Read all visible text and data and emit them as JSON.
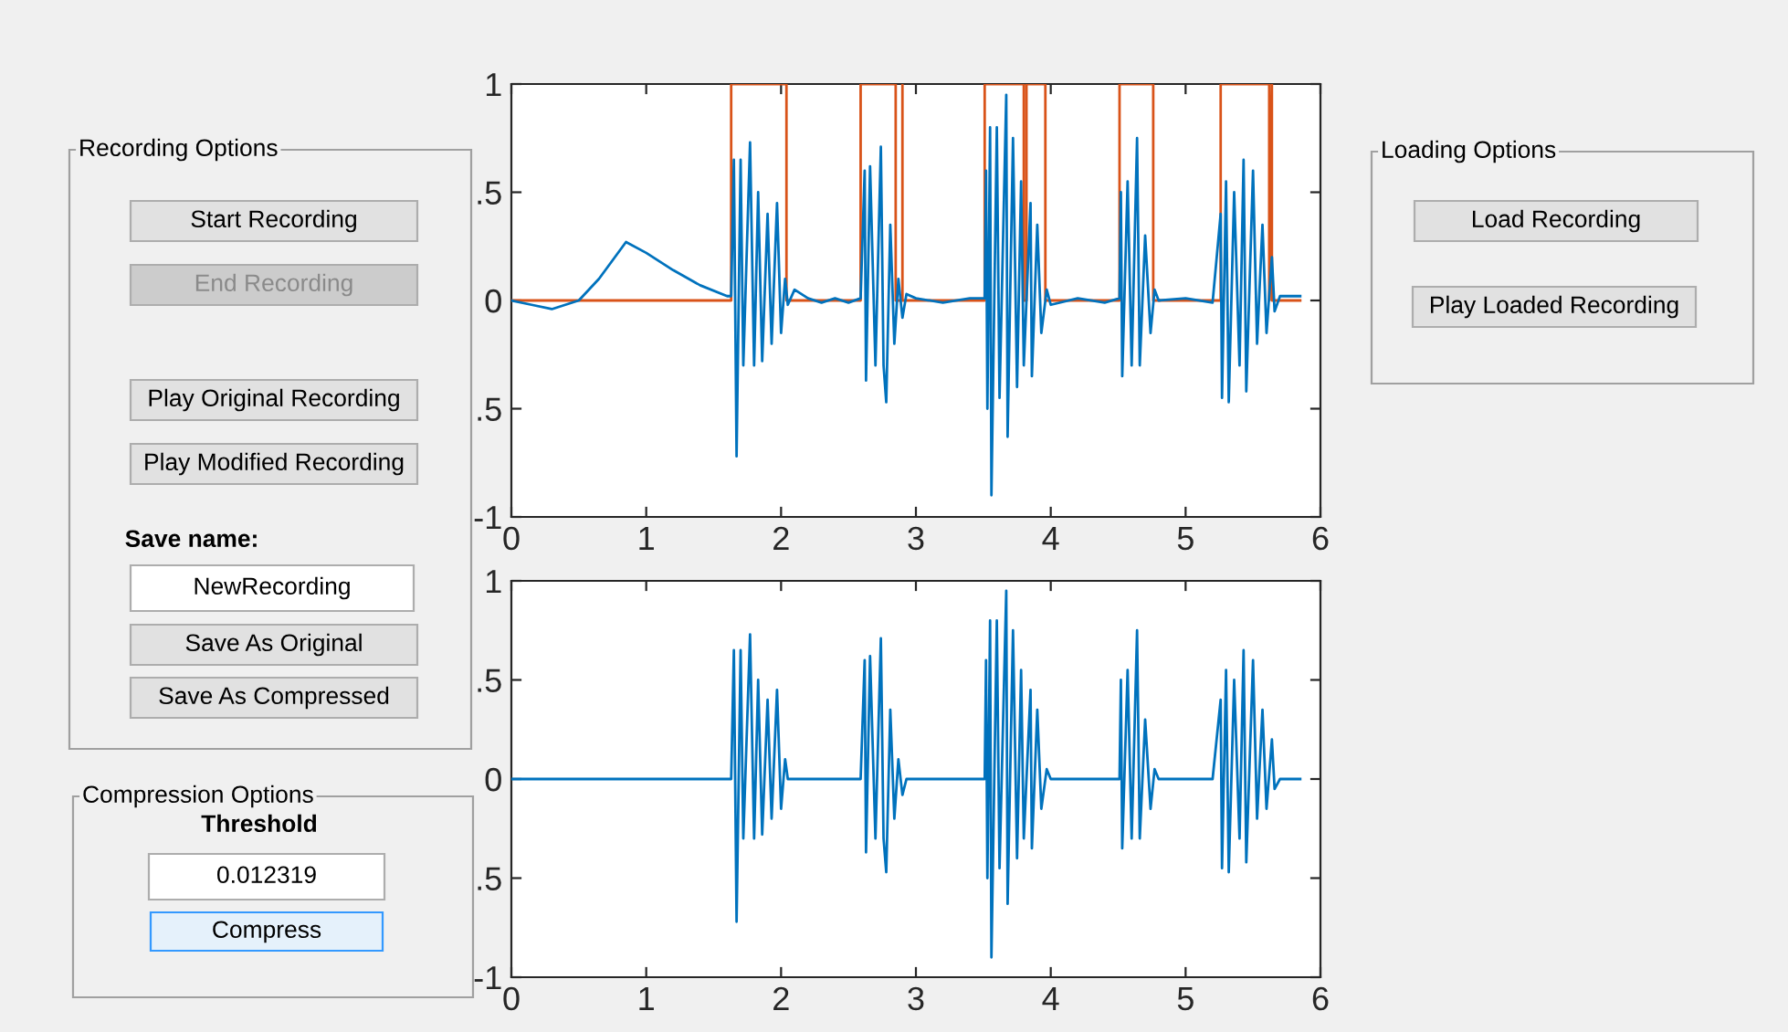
{
  "chart_data": [
    {
      "type": "other",
      "title": "Recording Options",
      "annotations": [
        "Start Recording",
        "End Recording",
        "Play Original Recording",
        "Play Modified Recording"
      ],
      "colors": [
        "#e1e1e1",
        "#cccccc",
        "#e1e1e1",
        "#e1e1e1"
      ]
    },
    {
      "type": "line",
      "xlim": [
        0,
        6
      ],
      "ylim": [
        -1,
        1
      ],
      "xticks": [
        0,
        1,
        2,
        3,
        4,
        5,
        6
      ],
      "yticks": [
        {
          "value": -1,
          "label": "-1"
        },
        {
          "value": -0.5,
          "label": ".5"
        },
        0,
        {
          "value": 0.5,
          "label": ".5"
        },
        1
      ],
      "series": [
        {
          "color": "#0072bd",
          "x": [
            0,
            0.15,
            0.3,
            0.5,
            0.65,
            0.85,
            1.0,
            1.2,
            1.4,
            1.6,
            1.63,
            1.65,
            1.67,
            1.7,
            1.72,
            1.77,
            1.8,
            1.83,
            1.86,
            1.9,
            1.93,
            1.97,
            2.0,
            2.03,
            2.05,
            2.1,
            2.2,
            2.3,
            2.4,
            2.5,
            2.59,
            2.62,
            2.63,
            2.66,
            2.7,
            2.74,
            2.76,
            2.78,
            2.81,
            2.84,
            2.87,
            2.9,
            2.93,
            3.0,
            3.2,
            3.4,
            3.51,
            3.52,
            3.53,
            3.55,
            3.56,
            3.6,
            3.62,
            3.67,
            3.68,
            3.72,
            3.75,
            3.78,
            3.8,
            3.85,
            3.86,
            3.9,
            3.93,
            3.97,
            4.0,
            4.2,
            4.4,
            4.51,
            4.52,
            4.53,
            4.57,
            4.6,
            4.64,
            4.66,
            4.7,
            4.74,
            4.77,
            4.8,
            5.0,
            5.2,
            5.26,
            5.27,
            5.3,
            5.32,
            5.36,
            5.4,
            5.43,
            5.45,
            5.5,
            5.53,
            5.57,
            5.6,
            5.64,
            5.66,
            5.7,
            5.85
          ],
          "values": [
            0,
            -0.02,
            -0.04,
            0,
            0.1,
            0.27,
            0.22,
            0.14,
            0.07,
            0.02,
            0.02,
            0.65,
            -0.72,
            0.65,
            -0.3,
            0.73,
            -0.3,
            0.5,
            -0.28,
            0.4,
            -0.2,
            0.45,
            -0.15,
            0.1,
            -0.02,
            0.05,
            0.01,
            -0.01,
            0.01,
            -0.01,
            0.01,
            0.6,
            -0.37,
            0.62,
            -0.3,
            0.71,
            -0.3,
            -0.47,
            0.35,
            -0.2,
            0.1,
            -0.08,
            0.03,
            0.01,
            -0.01,
            0.01,
            0.01,
            0.6,
            -0.5,
            0.8,
            -0.9,
            0.8,
            -0.45,
            0.95,
            -0.63,
            0.75,
            -0.4,
            0.55,
            -0.3,
            0.45,
            -0.35,
            0.35,
            -0.15,
            0.05,
            -0.02,
            0.01,
            -0.01,
            0.01,
            0.5,
            -0.35,
            0.55,
            -0.3,
            0.75,
            -0.3,
            0.3,
            -0.15,
            0.05,
            0,
            0.01,
            -0.01,
            0.4,
            -0.45,
            0.55,
            -0.47,
            0.5,
            -0.3,
            0.65,
            -0.42,
            0.6,
            -0.2,
            0.35,
            -0.15,
            0.2,
            -0.05,
            0.02,
            0.02
          ]
        },
        {
          "color": "#d95319",
          "x": [
            0,
            1.63,
            1.63,
            2.04,
            2.04,
            2.59,
            2.59,
            2.85,
            2.85,
            2.9,
            2.9,
            2.9,
            3.51,
            3.51,
            3.8,
            3.8,
            3.82,
            3.82,
            3.96,
            3.96,
            4.51,
            4.51,
            4.76,
            4.76,
            5.26,
            5.26,
            5.62,
            5.62,
            5.64,
            5.64,
            5.85
          ],
          "values": [
            0,
            0,
            1,
            1,
            0,
            0,
            1,
            1,
            0,
            0,
            1,
            0,
            0,
            1,
            1,
            0,
            0,
            1,
            1,
            0,
            0,
            1,
            1,
            0,
            0,
            1,
            1,
            0,
            1,
            0,
            0
          ]
        }
      ]
    },
    {
      "type": "other",
      "title": "Loading Options",
      "annotations": [
        "Load Recording",
        "Play Loaded Recording"
      ],
      "colors": [
        "#e1e1e1",
        "#e1e1e1"
      ]
    },
    {
      "type": "other",
      "subtitle": "Save name:",
      "annotations": [
        "NewRecording",
        "Save As Original",
        "Save As Compressed"
      ],
      "colors": [
        "#ffffff",
        "#e1e1e1",
        "#e1e1e1"
      ]
    },
    {
      "type": "line",
      "xlim": [
        0,
        6
      ],
      "ylim": [
        -1,
        1
      ],
      "xticks": [
        0,
        1,
        2,
        3,
        4,
        5,
        6
      ],
      "yticks": [
        {
          "value": -1,
          "label": "-1"
        },
        {
          "value": -0.5,
          "label": ".5"
        },
        0,
        {
          "value": 0.5,
          "label": ".5"
        },
        1
      ],
      "series": [
        {
          "color": "#0072bd",
          "x": [
            0,
            1.63,
            1.65,
            1.67,
            1.7,
            1.72,
            1.77,
            1.8,
            1.83,
            1.86,
            1.9,
            1.93,
            1.97,
            2.0,
            2.03,
            2.05,
            2.59,
            2.62,
            2.63,
            2.66,
            2.7,
            2.74,
            2.76,
            2.78,
            2.81,
            2.84,
            2.87,
            2.9,
            2.93,
            3.51,
            3.52,
            3.53,
            3.55,
            3.56,
            3.6,
            3.62,
            3.67,
            3.68,
            3.72,
            3.75,
            3.78,
            3.8,
            3.85,
            3.86,
            3.9,
            3.93,
            3.97,
            4.0,
            4.51,
            4.52,
            4.53,
            4.57,
            4.6,
            4.64,
            4.66,
            4.7,
            4.74,
            4.77,
            4.8,
            5.2,
            5.26,
            5.27,
            5.3,
            5.32,
            5.36,
            5.4,
            5.43,
            5.45,
            5.5,
            5.53,
            5.57,
            5.6,
            5.64,
            5.66,
            5.7,
            5.85
          ],
          "values": [
            0,
            0,
            0.65,
            -0.72,
            0.65,
            -0.3,
            0.73,
            -0.3,
            0.5,
            -0.28,
            0.4,
            -0.2,
            0.45,
            -0.15,
            0.1,
            0,
            0,
            0.6,
            -0.37,
            0.62,
            -0.3,
            0.71,
            -0.3,
            -0.47,
            0.35,
            -0.2,
            0.1,
            -0.08,
            0,
            0,
            0.6,
            -0.5,
            0.8,
            -0.9,
            0.8,
            -0.45,
            0.95,
            -0.63,
            0.75,
            -0.4,
            0.55,
            -0.3,
            0.45,
            -0.35,
            0.35,
            -0.15,
            0.05,
            0,
            0,
            0.5,
            -0.35,
            0.55,
            -0.3,
            0.75,
            -0.3,
            0.3,
            -0.15,
            0.05,
            0,
            0,
            0.4,
            -0.45,
            0.55,
            -0.47,
            0.5,
            -0.3,
            0.65,
            -0.42,
            0.6,
            -0.2,
            0.35,
            -0.15,
            0.2,
            -0.05,
            0,
            0
          ]
        }
      ]
    },
    {
      "type": "other",
      "title": "Compression Options",
      "subtitle": "Threshold",
      "annotations": [
        "0.012319",
        "Compress"
      ],
      "colors": [
        "#ffffff",
        "#e5f1fb"
      ]
    }
  ]
}
